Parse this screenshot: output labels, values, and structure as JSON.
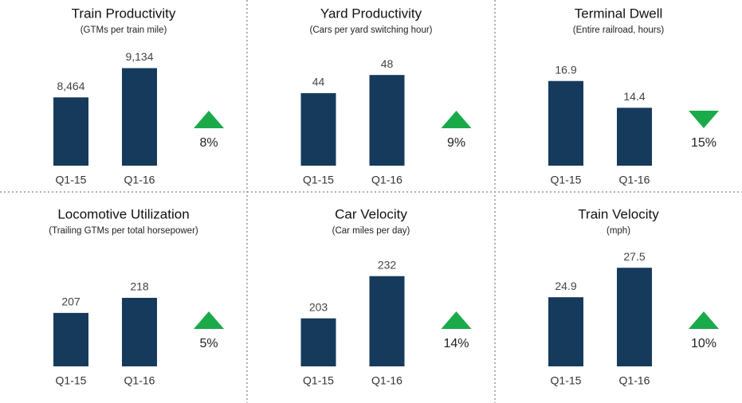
{
  "chart_data": [
    {
      "type": "bar",
      "title": "Train Productivity",
      "subtitle": "(GTMs per train mile)",
      "categories": [
        "Q1-15",
        "Q1-16"
      ],
      "values": [
        8464,
        9134
      ],
      "value_labels": [
        "8,464",
        "9,134"
      ],
      "ylim": [
        6900,
        9600
      ],
      "color": "#163a5c",
      "change": "8%",
      "change_direction": "up",
      "change_color": "#1aaa4a"
    },
    {
      "type": "bar",
      "title": "Yard Productivity",
      "subtitle": "(Cars per yard switching hour)",
      "categories": [
        "Q1-15",
        "Q1-16"
      ],
      "values": [
        44,
        48
      ],
      "ylim": [
        28,
        54
      ],
      "color": "#163a5c",
      "change": "9%",
      "change_direction": "up",
      "change_color": "#1aaa4a"
    },
    {
      "type": "bar",
      "title": "Terminal Dwell",
      "subtitle": "(Entire railroad, hours)",
      "categories": [
        "Q1-15",
        "Q1-16"
      ],
      "values": [
        16.9,
        14.4
      ],
      "ylim": [
        9,
        20
      ],
      "color": "#163a5c",
      "change": "15%",
      "change_direction": "down",
      "change_color": "#1aaa4a"
    },
    {
      "type": "bar",
      "title": "Locomotive Utilization",
      "subtitle": "(Trailing GTMs per total horsepower)",
      "categories": [
        "Q1-15",
        "Q1-16"
      ],
      "values": [
        207,
        218
      ],
      "ylim": [
        168,
        254
      ],
      "color": "#163a5c",
      "change": "5%",
      "change_direction": "up",
      "change_color": "#1aaa4a"
    },
    {
      "type": "bar",
      "title": "Car Velocity",
      "subtitle": "(Car miles per day)",
      "categories": [
        "Q1-15",
        "Q1-16"
      ],
      "values": [
        203,
        232
      ],
      "ylim": [
        170,
        251
      ],
      "color": "#163a5c",
      "change": "14%",
      "change_direction": "up",
      "change_color": "#1aaa4a"
    },
    {
      "type": "bar",
      "title": "Train Velocity",
      "subtitle": "(mph)",
      "categories": [
        "Q1-15",
        "Q1-16"
      ],
      "values": [
        24.9,
        27.5
      ],
      "ylim": [
        18.8,
        29.2
      ],
      "color": "#163a5c",
      "change": "10%",
      "change_direction": "up",
      "change_color": "#1aaa4a"
    }
  ]
}
